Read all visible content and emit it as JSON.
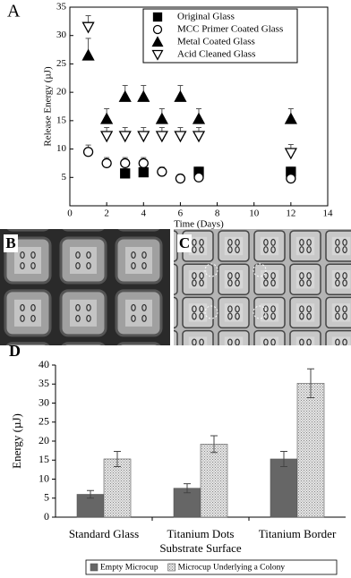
{
  "chart_data": [
    {
      "type": "scatter",
      "panel": "A",
      "x_label": "Time (Days)",
      "y_label": "Release Energy (µJ)",
      "xlim": [
        0,
        14
      ],
      "xticks": [
        0,
        2,
        4,
        6,
        8,
        10,
        12,
        14
      ],
      "ylim": [
        0,
        35
      ],
      "yticks": [
        5,
        10,
        15,
        20,
        25,
        30,
        35
      ],
      "series": [
        {
          "name": "Original Glass",
          "marker": "square",
          "filled": true,
          "color": "#000000",
          "x": [
            3,
            4,
            7,
            12
          ],
          "values": [
            5.7,
            5.9,
            6.0,
            6.0
          ],
          "errors": [
            0.8,
            0.8,
            0.8,
            0.8
          ]
        },
        {
          "name": "MCC Primer Coated Glass",
          "marker": "circle",
          "filled": false,
          "color": "#000000",
          "x": [
            1,
            2,
            3,
            4,
            5,
            6,
            7,
            12
          ],
          "values": [
            9.5,
            7.5,
            7.5,
            7.5,
            6.0,
            4.8,
            5.0,
            4.8
          ],
          "errors": [
            1.2,
            1.0,
            1.0,
            1.0,
            0.8,
            0.7,
            0.8,
            0.7
          ]
        },
        {
          "name": "Metal Coated Glass",
          "marker": "triangle-up",
          "filled": true,
          "color": "#000000",
          "x": [
            1,
            2,
            3,
            4,
            5,
            6,
            7,
            12
          ],
          "values": [
            26.5,
            15.3,
            19.2,
            19.2,
            15.3,
            19.2,
            15.3,
            15.3
          ],
          "errors": [
            3.0,
            1.8,
            2.0,
            2.0,
            1.8,
            2.0,
            1.8,
            1.8
          ]
        },
        {
          "name": "Acid Cleaned Glass",
          "marker": "triangle-down",
          "filled": false,
          "color": "#000000",
          "x": [
            1,
            2,
            3,
            4,
            5,
            6,
            7,
            12
          ],
          "values": [
            31.5,
            12.3,
            12.3,
            12.3,
            12.3,
            12.3,
            12.3,
            9.3
          ],
          "errors": [
            2.0,
            1.5,
            1.5,
            1.5,
            1.5,
            1.5,
            1.5,
            1.5
          ]
        }
      ]
    },
    {
      "type": "image",
      "panel": "B"
    },
    {
      "type": "image",
      "panel": "C"
    },
    {
      "type": "bar",
      "panel": "D",
      "x_label": "Substrate Surface",
      "y_label": "Energy (µJ)",
      "categories": [
        "Standard Glass",
        "Titanium Dots",
        "Titanium Border"
      ],
      "ylim": [
        0,
        40
      ],
      "yticks": [
        0,
        5,
        10,
        15,
        20,
        25,
        30,
        35,
        40
      ],
      "series": [
        {
          "name": "Empty Microcup",
          "color": "#666666",
          "hatched": false,
          "values": [
            6.0,
            7.6,
            15.3
          ],
          "errors": [
            1.0,
            1.2,
            2.0
          ]
        },
        {
          "name": "Microcup Underlying a Colony",
          "color": "#d8d8d8",
          "hatched": true,
          "values": [
            15.3,
            19.2,
            35.2
          ],
          "errors": [
            2.0,
            2.2,
            3.8
          ]
        }
      ]
    }
  ]
}
